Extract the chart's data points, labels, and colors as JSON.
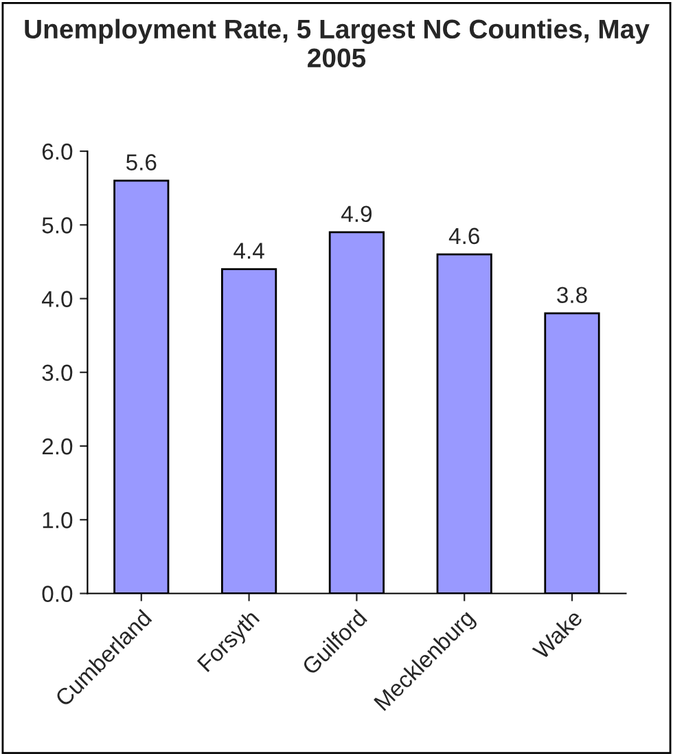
{
  "chart_data": {
    "type": "bar",
    "title": "Unemployment Rate, 5 Largest NC Counties, May 2005",
    "categories": [
      "Cumberland",
      "Forsyth",
      "Guilford",
      "Mecklenburg",
      "Wake"
    ],
    "values": [
      5.6,
      4.4,
      4.9,
      4.6,
      3.8
    ],
    "color": "#9999ff",
    "ylim": [
      0,
      6
    ],
    "yticks": [
      {
        "value": 0,
        "label": "0.0"
      },
      {
        "value": 1,
        "label": "1.0"
      },
      {
        "value": 2,
        "label": "2.0"
      },
      {
        "value": 3,
        "label": "3.0"
      },
      {
        "value": 4,
        "label": "4.0"
      },
      {
        "value": 5,
        "label": "5.0"
      },
      {
        "value": 6,
        "label": "6.0"
      }
    ],
    "data_labels": true,
    "grid": false,
    "legend": false
  }
}
